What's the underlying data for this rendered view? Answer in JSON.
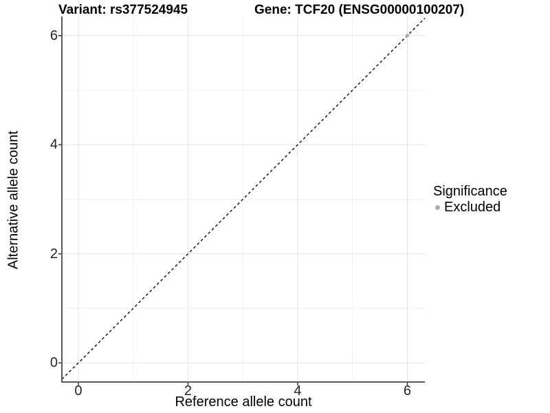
{
  "chart_data": {
    "type": "scatter",
    "title_left": "Variant: rs377524945",
    "title_right": "Gene: TCF20 (ENSG00000100207)",
    "xlabel": "Reference allele count",
    "ylabel": "Alternative allele count",
    "xlim": [
      -0.3,
      6.32
    ],
    "ylim": [
      -0.35,
      6.35
    ],
    "x_ticks": [
      0,
      2,
      4,
      6
    ],
    "y_ticks": [
      0,
      2,
      4,
      6
    ],
    "x_minor_grid": [
      1,
      3,
      5
    ],
    "y_minor_grid": [
      1,
      3,
      5
    ],
    "grid": true,
    "series": [
      {
        "name": "Excluded",
        "color": "#ACACAC",
        "points": [
          {
            "x": 6,
            "y": 6
          }
        ]
      }
    ],
    "reference_line": {
      "type": "identity",
      "slope": 1,
      "intercept": 0,
      "style": "dashed",
      "color": "#1a1a1a"
    },
    "legend": {
      "position": "right",
      "title": "Significance",
      "entries": [
        {
          "label": "Excluded",
          "color": "#ACACAC"
        }
      ]
    },
    "colors": {
      "panel_background": "#ffffff",
      "grid_major": "#e4e4e4",
      "grid_minor": "#f0f0f0",
      "axis_line": "#595959",
      "tick_mark": "#333333",
      "tick_text": "#262626",
      "point": "#ACACAC"
    }
  }
}
